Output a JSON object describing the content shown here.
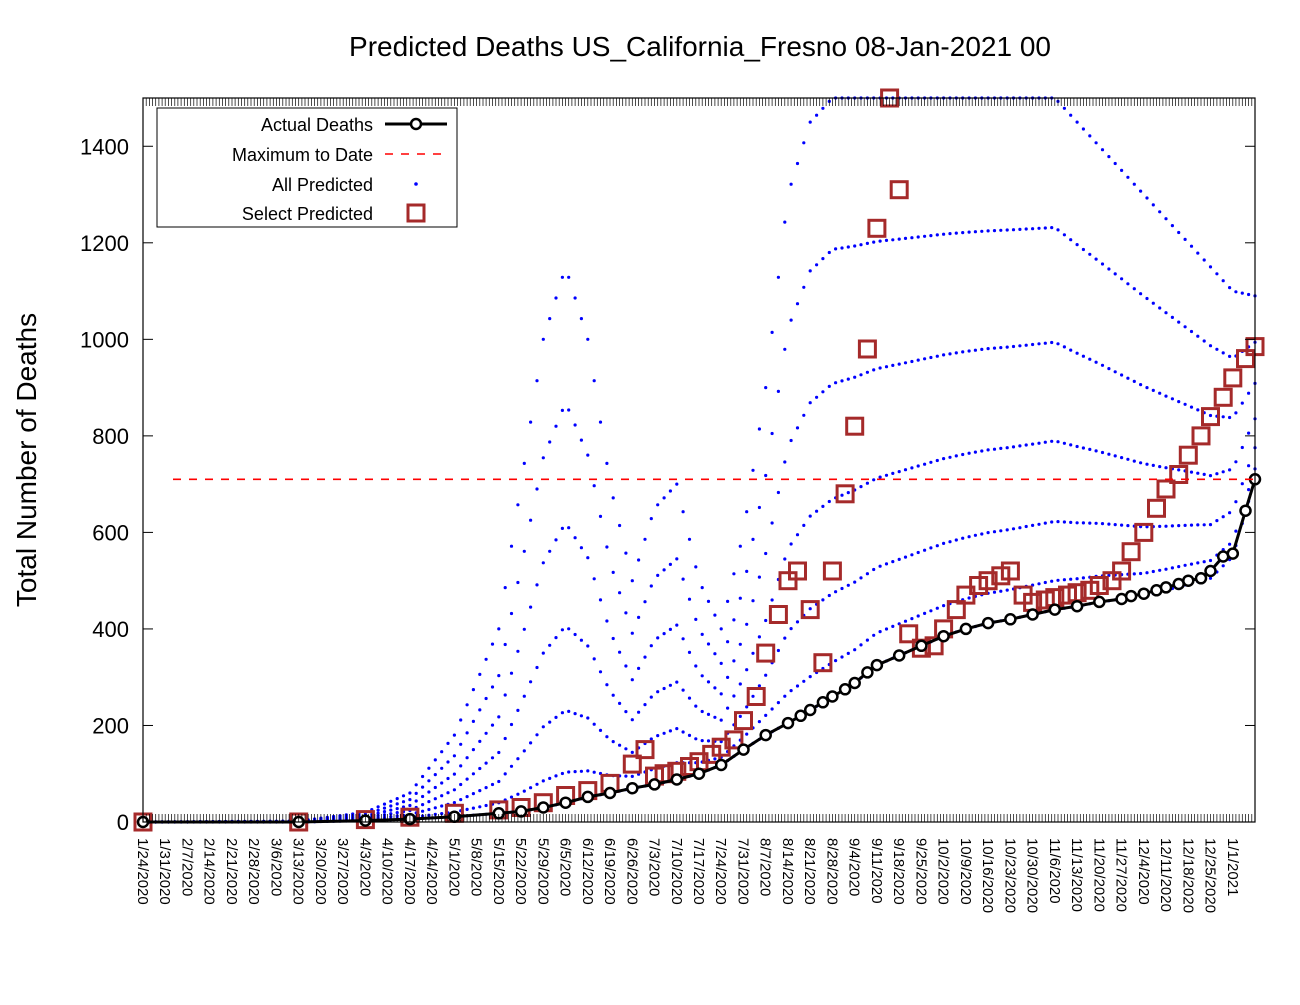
{
  "chart_data": {
    "type": "scatter",
    "title": "Predicted Deaths US_California_Fresno 08-Jan-2021 00",
    "xlabel": "",
    "ylabel": "Total Number of Deaths",
    "ylim": [
      0,
      1500
    ],
    "yticks": [
      0,
      200,
      400,
      600,
      800,
      1000,
      1200,
      1400
    ],
    "x_tick_labels": [
      "1/24/2020",
      "1/31/2020",
      "2/7/2020",
      "2/14/2020",
      "2/21/2020",
      "2/28/2020",
      "3/6/2020",
      "3/13/2020",
      "3/20/2020",
      "3/27/2020",
      "4/3/2020",
      "4/10/2020",
      "4/17/2020",
      "4/24/2020",
      "5/1/2020",
      "5/8/2020",
      "5/15/2020",
      "5/22/2020",
      "5/29/2020",
      "6/5/2020",
      "6/12/2020",
      "6/19/2020",
      "6/26/2020",
      "7/3/2020",
      "7/10/2020",
      "7/17/2020",
      "7/24/2020",
      "7/31/2020",
      "8/7/2020",
      "8/14/2020",
      "8/21/2020",
      "8/28/2020",
      "9/4/2020",
      "9/11/2020",
      "9/18/2020",
      "9/25/2020",
      "10/2/2020",
      "10/9/2020",
      "10/16/2020",
      "10/23/2020",
      "10/30/2020",
      "11/6/2020",
      "11/13/2020",
      "11/20/2020",
      "11/27/2020",
      "12/4/2020",
      "12/11/2020",
      "12/18/2020",
      "12/25/2020",
      "1/1/2021"
    ],
    "legend": {
      "placement": "top-left",
      "entries": [
        "Actual Deaths",
        "Maximum to Date",
        "All Predicted",
        "Select Predicted"
      ]
    },
    "colors": {
      "actual": "#000000",
      "maximum": "#ff0000",
      "all_predicted": "#0000ff",
      "select_predicted": "#a52a2a"
    },
    "maximum_to_date": 710,
    "series": [
      {
        "name": "Actual Deaths",
        "x_day": [
          0,
          49,
          70,
          84,
          98,
          112,
          119,
          126,
          133,
          140,
          147,
          154,
          161,
          168,
          175,
          182,
          189,
          196,
          203,
          207,
          210,
          214,
          217,
          221,
          224,
          228,
          231,
          238,
          245,
          252,
          259,
          266,
          273,
          280,
          287,
          294,
          301,
          308,
          311,
          315,
          319,
          322,
          326,
          329,
          333,
          336,
          340,
          343,
          347,
          350
        ],
        "values": [
          0,
          0,
          3,
          6,
          11,
          18,
          22,
          30,
          40,
          52,
          60,
          70,
          78,
          88,
          100,
          118,
          150,
          180,
          205,
          220,
          232,
          248,
          260,
          275,
          288,
          310,
          325,
          345,
          365,
          385,
          400,
          412,
          420,
          430,
          440,
          447,
          456,
          462,
          468,
          473,
          480,
          486,
          493,
          500,
          505,
          520,
          550,
          556,
          645,
          710
        ]
      },
      {
        "name": "Select Predicted",
        "x_day": [
          0,
          49,
          70,
          84,
          98,
          112,
          119,
          126,
          133,
          140,
          147,
          154,
          158,
          161,
          164,
          168,
          172,
          175,
          179,
          182,
          186,
          189,
          193,
          196,
          200,
          203,
          206,
          210,
          214,
          217,
          221,
          224,
          228,
          231,
          235,
          238,
          241,
          245,
          249,
          252,
          256,
          259,
          263,
          266,
          270,
          273,
          277,
          280,
          284,
          287,
          291,
          294,
          298,
          301,
          305,
          308,
          311,
          315,
          319,
          322,
          326,
          329,
          333,
          336,
          340,
          343,
          347,
          350
        ],
        "values": [
          0,
          0,
          5,
          10,
          18,
          25,
          30,
          40,
          55,
          65,
          80,
          120,
          150,
          95,
          100,
          105,
          115,
          125,
          140,
          155,
          170,
          210,
          260,
          350,
          430,
          500,
          520,
          440,
          330,
          520,
          680,
          820,
          980,
          1230,
          1500,
          1310,
          390,
          360,
          365,
          400,
          440,
          470,
          490,
          500,
          510,
          520,
          470,
          455,
          460,
          465,
          470,
          475,
          480,
          490,
          500,
          520,
          560,
          600,
          650,
          690,
          720,
          760,
          800,
          840,
          880,
          920,
          960,
          985
        ]
      },
      {
        "name": "All Predicted",
        "note_envelope": "upper and lower bounds of the predicted cloud",
        "x_day": [
          0,
          49,
          70,
          84,
          98,
          112,
          119,
          126,
          133,
          140,
          147,
          154,
          161,
          168,
          175,
          182,
          189,
          196,
          203,
          210,
          217,
          224,
          231,
          238,
          245,
          252,
          259,
          266,
          273,
          280,
          287,
          294,
          301,
          308,
          315,
          322,
          329,
          336,
          343,
          350
        ],
        "upper": [
          0,
          2,
          20,
          60,
          180,
          400,
          700,
          1000,
          1150,
          1000,
          700,
          500,
          650,
          700,
          500,
          400,
          600,
          900,
          1300,
          1450,
          1500,
          1500,
          1500,
          1500,
          1500,
          1500,
          1500,
          1500,
          1500,
          1500,
          1500,
          1450,
          1400,
          1350,
          1300,
          1250,
          1200,
          1150,
          1100,
          1090
        ],
        "lower": [
          0,
          0,
          3,
          6,
          11,
          18,
          22,
          30,
          40,
          52,
          60,
          70,
          78,
          88,
          100,
          118,
          150,
          180,
          205,
          232,
          260,
          288,
          325,
          345,
          365,
          385,
          400,
          412,
          420,
          430,
          440,
          447,
          456,
          462,
          468,
          480,
          493,
          505,
          550,
          710
        ]
      }
    ]
  }
}
